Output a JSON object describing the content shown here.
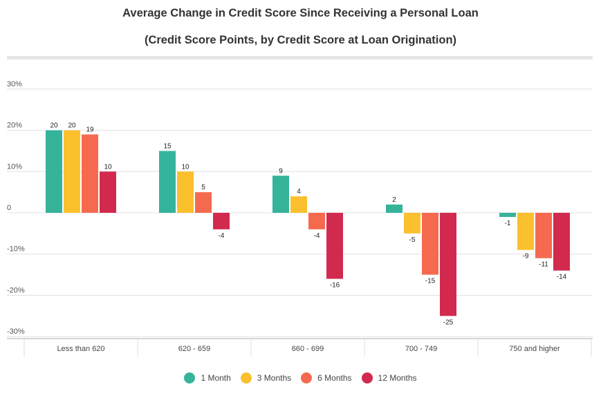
{
  "chart_data": {
    "type": "bar",
    "title": "Average Change in Credit Score Since Receiving a Personal Loan",
    "subtitle": "(Credit Score Points, by Credit Score at Loan Origination)",
    "categories": [
      "Less than 620",
      "620 - 659",
      "660 - 699",
      "700 - 749",
      "750 and higher"
    ],
    "series": [
      {
        "name": "1 Month",
        "color": "#35b39b",
        "values": [
          20,
          15,
          9,
          2,
          -1
        ]
      },
      {
        "name": "3 Months",
        "color": "#fbc02d",
        "values": [
          20,
          10,
          4,
          -5,
          -9
        ]
      },
      {
        "name": "6 Months",
        "color": "#f56a4f",
        "values": [
          19,
          5,
          -4,
          -15,
          -11
        ]
      },
      {
        "name": "12 Months",
        "color": "#d22a4e",
        "values": [
          10,
          -4,
          -16,
          -25,
          -14
        ]
      }
    ],
    "yticks": [
      {
        "v": 30,
        "label": "30%"
      },
      {
        "v": 20,
        "label": "20%"
      },
      {
        "v": 10,
        "label": "10%"
      },
      {
        "v": 0,
        "label": "0"
      },
      {
        "v": -10,
        "label": "-10%"
      },
      {
        "v": -20,
        "label": "-20%"
      },
      {
        "v": -30,
        "label": "-30%"
      }
    ],
    "ylim": [
      -30,
      30
    ],
    "grid": true,
    "legend": "bottom-center"
  }
}
